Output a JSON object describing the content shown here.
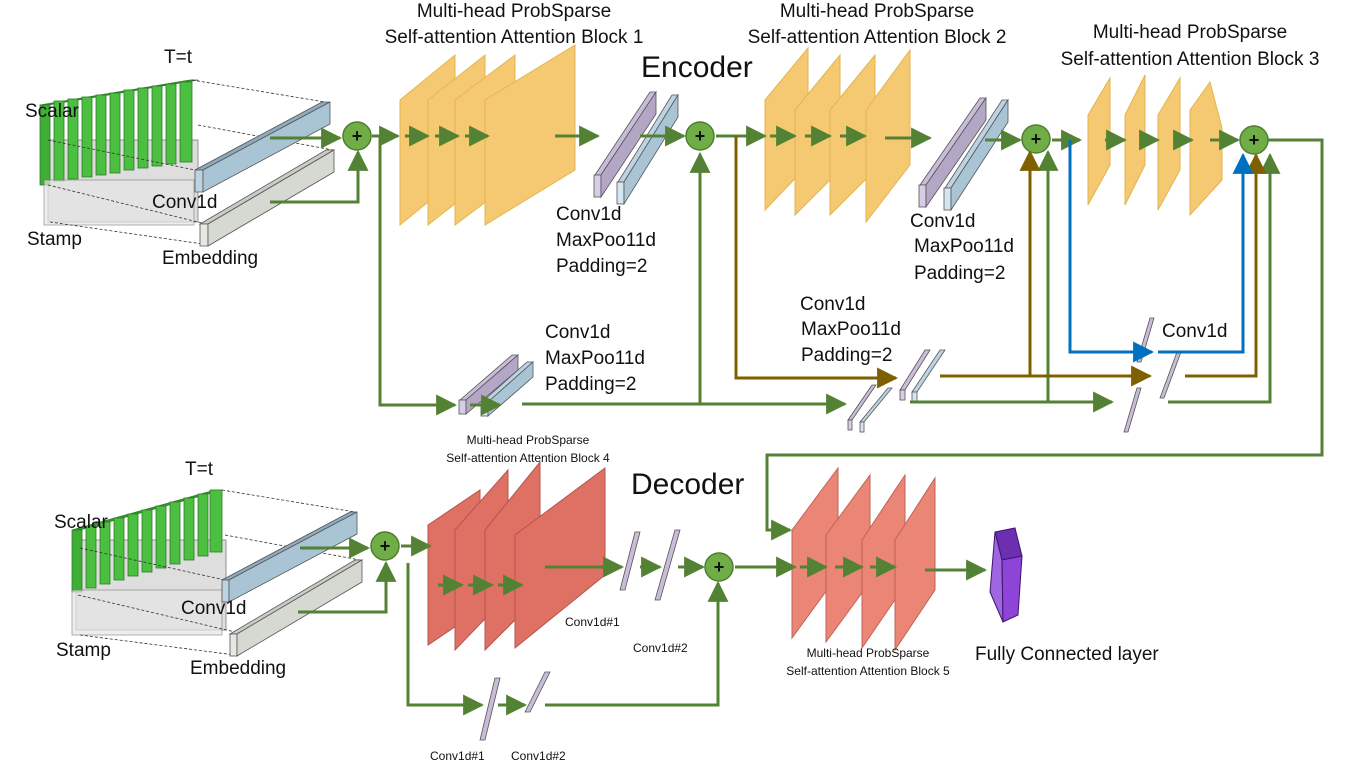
{
  "encoder": {
    "title": "Encoder",
    "input": {
      "time_label": "T=t",
      "scalar_label": "Scalar",
      "stamp_label": "Stamp",
      "conv_label": "Conv1d",
      "embedding_label": "Embedding"
    },
    "block1": {
      "line1": "Multi-head ProbSparse",
      "line2": "Self-attention Attention Block 1"
    },
    "block2": {
      "line1": "Multi-head ProbSparse",
      "line2": "Self-attention Attention Block 2"
    },
    "block3": {
      "line1": "Multi-head ProbSparse",
      "line2": "Self-attention Attention Block 3"
    },
    "block4": {
      "line1": "Multi-head ProbSparse",
      "line2": "Self-attention Attention Block 4"
    },
    "distill1": {
      "conv": "Conv1d",
      "pool": "MaxPoo11d",
      "pad": "Padding=2"
    },
    "distill2": {
      "conv": "Conv1d",
      "pool": "MaxPoo11d",
      "pad": "Padding=2"
    },
    "distill_low": {
      "conv": "Conv1d",
      "pool": "MaxPoo11d",
      "pad": "Padding=2"
    },
    "distill_mid": {
      "conv": "Conv1d",
      "pool": "MaxPoo11d",
      "pad": "Padding=2"
    },
    "conv_right": "Conv1d"
  },
  "decoder": {
    "title": "Decoder",
    "input": {
      "time_label": "T=t",
      "scalar_label": "Scalar",
      "stamp_label": "Stamp",
      "conv_label": "Conv1d",
      "embedding_label": "Embedding"
    },
    "conv1": "Conv1d#1",
    "conv2": "Conv1d#2",
    "conv_bottom1": "Conv1d#1",
    "conv_bottom2": "Conv1d#2",
    "block5": {
      "line1": "Multi-head ProbSparse",
      "line2": "Self-attention Attention Block 5"
    },
    "fc": "Fully Connected layer"
  },
  "add_symbol": "+",
  "colors": {
    "green_line": "#548235",
    "brown_line": "#7f6000",
    "blue_line": "#0070c0",
    "attention_orange": "#f4c05a",
    "attention_red": "#d9584a",
    "conv_purple": "#b4a7c6",
    "conv_blue": "#a9c4d4",
    "fc_purple": "#8e44d6",
    "scalar_green": "#4bbf3f"
  }
}
